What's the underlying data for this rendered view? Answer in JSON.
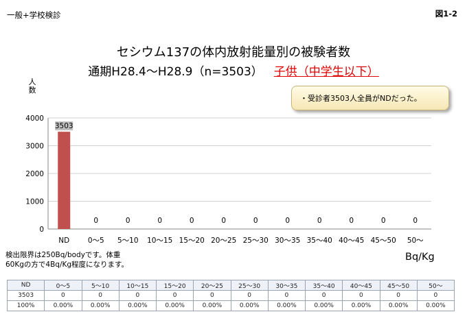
{
  "page": {
    "corner_left": "一般+学校検診",
    "corner_right": "図1-2"
  },
  "chart_data": {
    "type": "bar",
    "title": "セシウム137の体内放射能量別の被験者数",
    "subtitle": "通期H28.4～H28.9（n=3503）",
    "subtitle_highlight": "子供（中学生以下）",
    "ylabel": "人\n数",
    "xlabel": "Bq/Kg",
    "ylim": [
      0,
      4000
    ],
    "yticks": [
      0,
      1000,
      2000,
      3000,
      4000
    ],
    "grid": true,
    "categories": [
      "ND",
      "0～5",
      "5～10",
      "10～15",
      "15～20",
      "20～25",
      "25～30",
      "30～35",
      "35～40",
      "40～45",
      "45～50",
      "50～"
    ],
    "values": [
      3503,
      0,
      0,
      0,
      0,
      0,
      0,
      0,
      0,
      0,
      0,
      0
    ],
    "bar_color": "#c0504d",
    "annotation": "・受診者3503人全員がNDだった。"
  },
  "footnote": {
    "line1": "検出限界は250Bq/bodyです。体重",
    "line2": "60Kgの方で4Bq/Kg程度になります。"
  },
  "table": {
    "header": [
      "ND",
      "0～5",
      "5～10",
      "10～15",
      "15～20",
      "20～25",
      "25～30",
      "30～35",
      "35～40",
      "40～45",
      "45～50",
      "50～"
    ],
    "counts": [
      "3503",
      "0",
      "0",
      "0",
      "0",
      "0",
      "0",
      "0",
      "0",
      "0",
      "0",
      "0"
    ],
    "percents": [
      "100%",
      "0.00%",
      "0.00%",
      "0.00%",
      "0.00%",
      "0.00%",
      "0.00%",
      "0.00%",
      "0.00%",
      "0.00%",
      "0.00%",
      "0.00%"
    ]
  }
}
